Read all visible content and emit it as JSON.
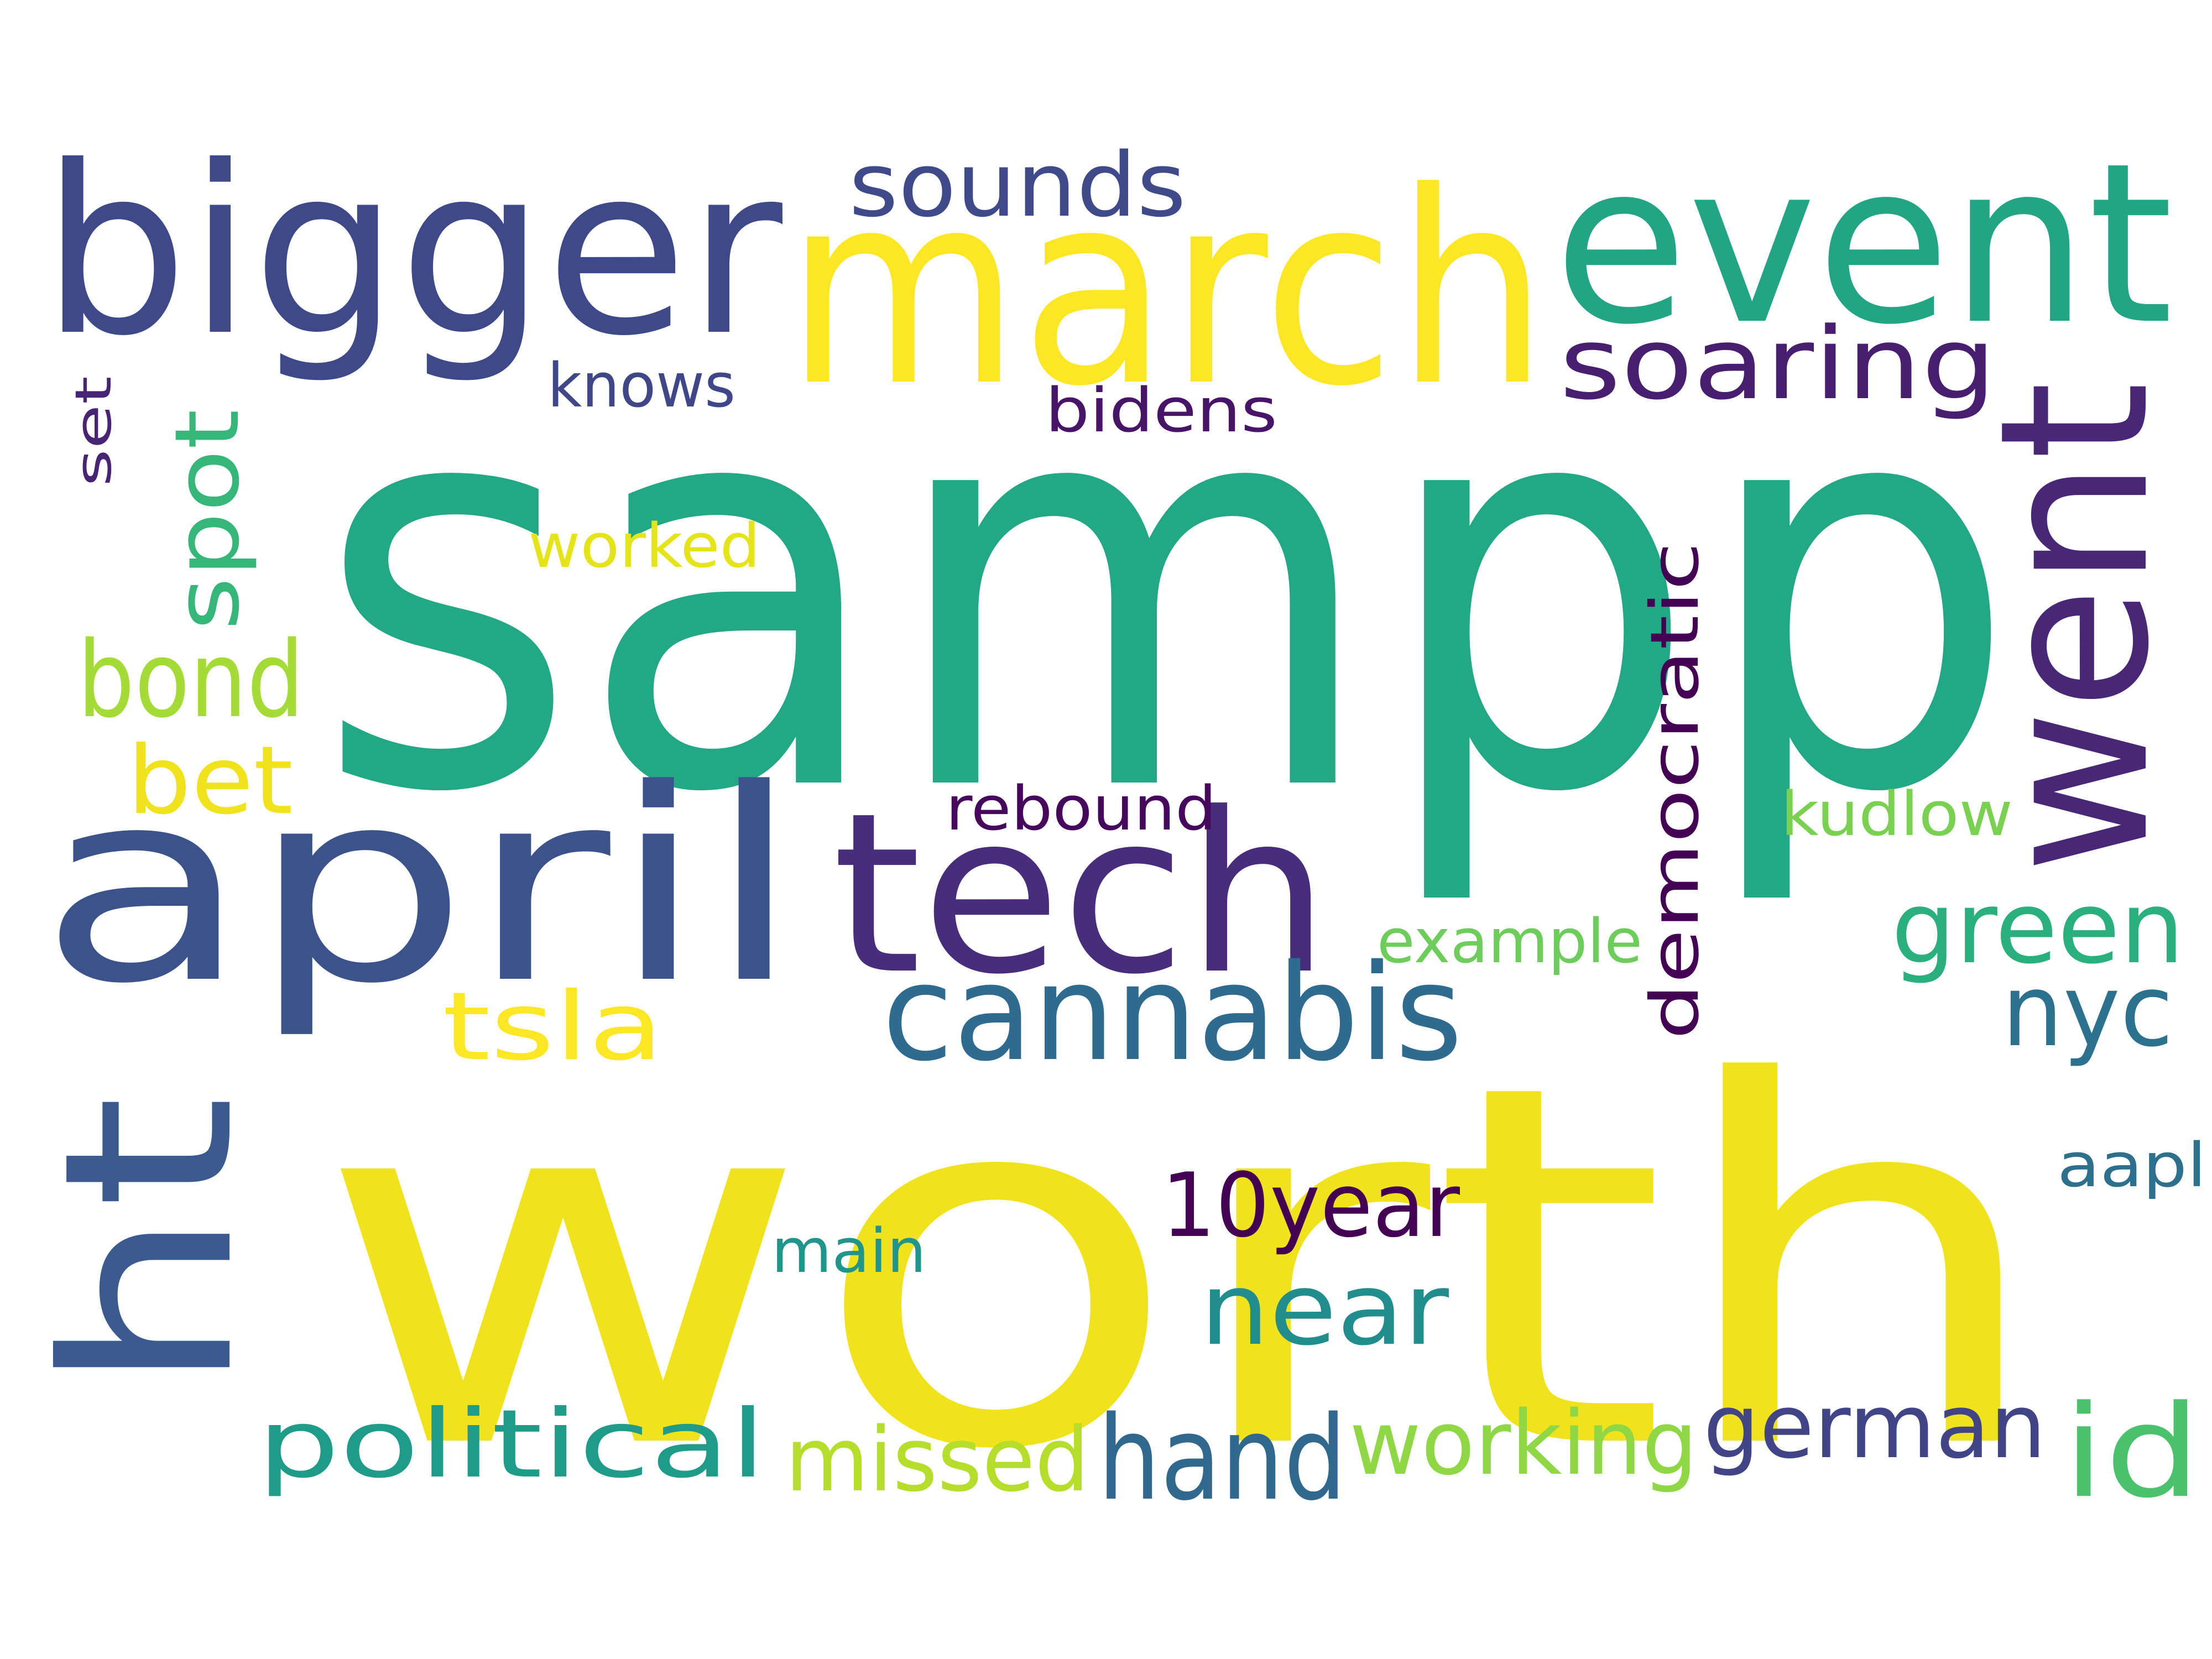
{
  "words": [
    {
      "id": "sampp",
      "text": "sampp",
      "color": "#22a884"
    },
    {
      "id": "worth",
      "text": "worth",
      "color": "#f0e31c"
    },
    {
      "id": "march",
      "text": "march",
      "color": "#fde725"
    },
    {
      "id": "bigger",
      "text": "bigger",
      "color": "#3e4989"
    },
    {
      "id": "april",
      "text": "april",
      "color": "#3b528b"
    },
    {
      "id": "event",
      "text": "event",
      "color": "#21a585"
    },
    {
      "id": "went",
      "text": "went",
      "color": "#482777"
    },
    {
      "id": "tech",
      "text": "tech",
      "color": "#472d7b"
    },
    {
      "id": "ht",
      "text": "ht",
      "color": "#3b5a8d"
    },
    {
      "id": "cannabis",
      "text": "cannabis",
      "color": "#2f6b8e"
    },
    {
      "id": "soaring",
      "text": "soaring",
      "color": "#481f70"
    },
    {
      "id": "sounds",
      "text": "sounds",
      "color": "#3e4a89"
    },
    {
      "id": "bond",
      "text": "bond",
      "color": "#a5db36"
    },
    {
      "id": "spot",
      "text": "spot",
      "color": "#35b779"
    },
    {
      "id": "bet",
      "text": "bet",
      "color": "#f0e31c"
    },
    {
      "id": "tsla",
      "text": "tsla",
      "color": "#fde725"
    },
    {
      "id": "green",
      "text": "green",
      "color": "#2ab07f"
    },
    {
      "id": "nyc",
      "text": "nyc",
      "color": "#2c728e"
    },
    {
      "id": "democratic",
      "text": "democratic",
      "color": "#440154"
    },
    {
      "id": "10year",
      "text": "10year",
      "color": "#440154"
    },
    {
      "id": "near",
      "text": "near",
      "color": "#218e8d"
    },
    {
      "id": "hand",
      "text": "hand",
      "color": "#31688e"
    },
    {
      "id": "political",
      "text": "political",
      "color": "#1e9c89"
    },
    {
      "id": "missed",
      "text": "missed",
      "color": "#b5de2b"
    },
    {
      "id": "working",
      "text": "working",
      "color": "#8fd744"
    },
    {
      "id": "german",
      "text": "german",
      "color": "#414487"
    },
    {
      "id": "id",
      "text": "id",
      "color": "#4ac16d"
    },
    {
      "id": "knows",
      "text": "knows",
      "color": "#3f4788"
    },
    {
      "id": "bidens",
      "text": "bidens",
      "color": "#481467"
    },
    {
      "id": "worked",
      "text": "worked",
      "color": "#e5e419"
    },
    {
      "id": "rebound",
      "text": "rebound",
      "color": "#46085c"
    },
    {
      "id": "kudlow",
      "text": "kudlow",
      "color": "#7ad151"
    },
    {
      "id": "example",
      "text": "example",
      "color": "#6ccd5a"
    },
    {
      "id": "main",
      "text": "main",
      "color": "#1f958b"
    },
    {
      "id": "aapl",
      "text": "aapl",
      "color": "#2d708e"
    },
    {
      "id": "set",
      "text": "set",
      "color": "#482475"
    }
  ]
}
